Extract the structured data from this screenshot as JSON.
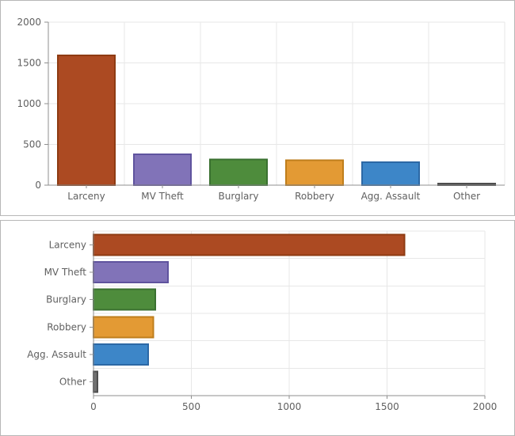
{
  "chart_data": [
    {
      "type": "bar",
      "orientation": "vertical",
      "title": "",
      "xlabel": "",
      "ylabel": "",
      "categories": [
        "Larceny",
        "MV Theft",
        "Burglary",
        "Robbery",
        "Agg. Assault",
        "Other"
      ],
      "values": [
        1590,
        380,
        315,
        305,
        280,
        20
      ],
      "value_axis": {
        "min": 0,
        "max": 2000,
        "ticks": [
          0,
          500,
          1000,
          1500,
          2000
        ],
        "tick_labels": [
          "0",
          "500",
          "1000",
          "1500",
          "2000"
        ]
      },
      "grid": true,
      "legend": false,
      "bar_fill": [
        "#AC4A22",
        "#8173B8",
        "#4E8C3C",
        "#E39A34",
        "#3D86C8",
        "#707070"
      ],
      "bar_stroke": [
        "#8E3B12",
        "#5F539E",
        "#3A7130",
        "#BF7E1C",
        "#2C68A5",
        "#4D4D4D"
      ]
    },
    {
      "type": "bar",
      "orientation": "horizontal",
      "title": "",
      "xlabel": "",
      "ylabel": "",
      "categories": [
        "Larceny",
        "MV Theft",
        "Burglary",
        "Robbery",
        "Agg. Assault",
        "Other"
      ],
      "values": [
        1590,
        380,
        315,
        305,
        280,
        20
      ],
      "value_axis": {
        "min": 0,
        "max": 2000,
        "ticks": [
          0,
          500,
          1000,
          1500,
          2000
        ],
        "tick_labels": [
          "0",
          "500",
          "1000",
          "1500",
          "2000"
        ]
      },
      "grid": true,
      "legend": false,
      "bar_fill": [
        "#AC4A22",
        "#8173B8",
        "#4E8C3C",
        "#E39A34",
        "#3D86C8",
        "#707070"
      ],
      "bar_stroke": [
        "#8E3B12",
        "#5F539E",
        "#3A7130",
        "#BF7E1C",
        "#2C68A5",
        "#4D4D4D"
      ]
    }
  ],
  "style": {
    "background": "#ffffff",
    "panel_border": "#b7b7b7",
    "grid_color": "#e7e7e7",
    "axis_color": "#8f8f8f",
    "label_color": "#606060"
  }
}
